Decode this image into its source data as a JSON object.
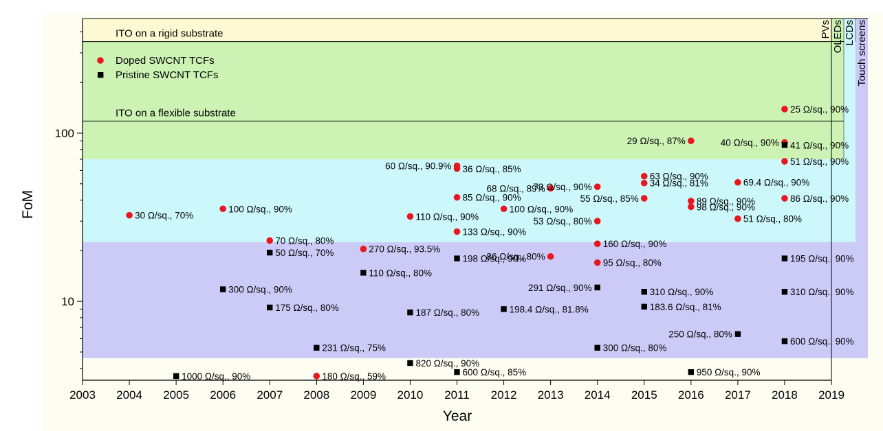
{
  "chart_data": {
    "type": "scatter",
    "title": "",
    "xlabel": "Year",
    "ylabel": "FoM",
    "xlim": [
      2003,
      2019
    ],
    "ylim": [
      3.4,
      480
    ],
    "y_scale": "log",
    "x_ticks": [
      2003,
      2004,
      2005,
      2006,
      2007,
      2008,
      2009,
      2010,
      2011,
      2012,
      2013,
      2014,
      2015,
      2016,
      2017,
      2018,
      2019
    ],
    "y_ticks": [
      10,
      100
    ],
    "y_tick_labels": [
      "10",
      "100"
    ],
    "grid": false,
    "legend_position": "top-left",
    "legend": [
      {
        "label": "Doped SWCNT TCFs",
        "marker": "circle",
        "color": "#e8171f"
      },
      {
        "label": "Pristine  SWCNT TCFs",
        "marker": "square",
        "color": "#000000"
      }
    ],
    "reference_lines": [
      {
        "label": "ITO on a rigid substrate",
        "y": 350
      },
      {
        "label": "ITO on a flexible substrate",
        "y": 118
      }
    ],
    "bands": [
      {
        "label": "Touch screens",
        "y_from": 4.6,
        "y_to": 480,
        "color": "#cccbf8"
      },
      {
        "label": "LCDs",
        "y_from": 22.5,
        "y_to": 480,
        "color": "#cdf8fb"
      },
      {
        "label": "OLEDs",
        "y_from": 70,
        "y_to": 480,
        "color": "#ccf2b4"
      },
      {
        "label": "PVs",
        "y_from": 350,
        "y_to": 480,
        "color": "#fdf9d2"
      }
    ],
    "background_color": "#fdfdf2",
    "series": [
      {
        "name": "Doped SWCNT TCFs",
        "marker": "circle",
        "color": "#e8171f",
        "points": [
          {
            "x": 2004,
            "y": 32.5,
            "label": "30 Ω/sq., 70%"
          },
          {
            "x": 2006,
            "y": 35.5,
            "label": "100 Ω/sq., 90%"
          },
          {
            "x": 2007,
            "y": 23,
            "label": "70 Ω/sq., 80%"
          },
          {
            "x": 2008,
            "y": 3.6,
            "label": "180 Ω/sq., 59%"
          },
          {
            "x": 2009,
            "y": 20.5,
            "label": "270 Ω/sq., 93.5%"
          },
          {
            "x": 2010,
            "y": 32,
            "label": "110 Ω/sq., 90%"
          },
          {
            "x": 2011,
            "y": 64,
            "label": "60 Ω/sq., 90.9%"
          },
          {
            "x": 2011,
            "y": 61.5,
            "label": "36 Ω/sq., 85%"
          },
          {
            "x": 2011,
            "y": 41.5,
            "label": "85 Ω/sq., 90%"
          },
          {
            "x": 2011,
            "y": 26,
            "label": "133 Ω/sq., 90%"
          },
          {
            "x": 2012,
            "y": 35.5,
            "label": "100 Ω/sq., 90%"
          },
          {
            "x": 2013,
            "y": 47,
            "label": "68 Ω/sq., 89%"
          },
          {
            "x": 2013,
            "y": 18.5,
            "label": "86 Ω/sq., 80%"
          },
          {
            "x": 2014,
            "y": 48,
            "label": "73 Ω/sq., 90%"
          },
          {
            "x": 2014,
            "y": 30,
            "label": "53 Ω/sq., 80%"
          },
          {
            "x": 2014,
            "y": 22,
            "label": "160 Ω/sq., 90%"
          },
          {
            "x": 2014,
            "y": 17,
            "label": "95 Ω/sq., 80%"
          },
          {
            "x": 2015,
            "y": 55.5,
            "label": "63 Ω/sq., 90%"
          },
          {
            "x": 2015,
            "y": 50.5,
            "label": "34 Ω/sq., 81%"
          },
          {
            "x": 2015,
            "y": 41,
            "label": "55 Ω/sq., 85%"
          },
          {
            "x": 2016,
            "y": 90,
            "label": "29 Ω/sq., 87%"
          },
          {
            "x": 2016,
            "y": 39.5,
            "label": "89 Ω/sq., 90%"
          },
          {
            "x": 2016,
            "y": 36.5,
            "label": "98 Ω/sq., 90%"
          },
          {
            "x": 2017,
            "y": 51,
            "label": "69.4 Ω/sq., 90%"
          },
          {
            "x": 2017,
            "y": 31,
            "label": "51 Ω/sq., 80%"
          },
          {
            "x": 2018,
            "y": 139,
            "label": "25 Ω/sq., 90%"
          },
          {
            "x": 2018,
            "y": 88,
            "label": "40 Ω/sq., 90%"
          },
          {
            "x": 2018,
            "y": 68,
            "label": "51 Ω/sq., 90%"
          },
          {
            "x": 2018,
            "y": 41,
            "label": "86 Ω/sq., 90%"
          }
        ]
      },
      {
        "name": "Pristine  SWCNT TCFs",
        "marker": "square",
        "color": "#000000",
        "points": [
          {
            "x": 2005,
            "y": 3.6,
            "label": "1000 Ω/sq., 90%"
          },
          {
            "x": 2006,
            "y": 11.8,
            "label": "300 Ω/sq., 90%"
          },
          {
            "x": 2007,
            "y": 19.5,
            "label": "50 Ω/sq., 70%"
          },
          {
            "x": 2007,
            "y": 9.2,
            "label": "175 Ω/sq., 80%"
          },
          {
            "x": 2008,
            "y": 5.3,
            "label": "231 Ω/sq., 75%"
          },
          {
            "x": 2009,
            "y": 14.8,
            "label": "110 Ω/sq., 80%"
          },
          {
            "x": 2010,
            "y": 8.6,
            "label": "187 Ω/sq., 80%"
          },
          {
            "x": 2010,
            "y": 4.3,
            "label": "820 Ω/sq., 90%"
          },
          {
            "x": 2011,
            "y": 18,
            "label": "198 Ω/sq., 90%"
          },
          {
            "x": 2011,
            "y": 3.8,
            "label": "600 Ω/sq., 85%"
          },
          {
            "x": 2012,
            "y": 9.0,
            "label": "198.4 Ω/sq., 81.8%"
          },
          {
            "x": 2014,
            "y": 12.1,
            "label": "291 Ω/sq., 90%"
          },
          {
            "x": 2014,
            "y": 5.3,
            "label": "300 Ω/sq., 80%"
          },
          {
            "x": 2015,
            "y": 11.4,
            "label": "310 Ω/sq., 90%"
          },
          {
            "x": 2015,
            "y": 9.3,
            "label": "183.6 Ω/sq., 81%"
          },
          {
            "x": 2016,
            "y": 3.8,
            "label": "950 Ω/sq., 90%"
          },
          {
            "x": 2017,
            "y": 6.4,
            "label": "250 Ω/sq., 80%"
          },
          {
            "x": 2018,
            "y": 85,
            "label": "41 Ω/sq., 90%"
          },
          {
            "x": 2018,
            "y": 18,
            "label": "195 Ω/sq., 90%"
          },
          {
            "x": 2018,
            "y": 11.4,
            "label": "310 Ω/sq., 90%"
          },
          {
            "x": 2018,
            "y": 5.8,
            "label": "600 Ω/sq., 90%"
          }
        ]
      }
    ]
  }
}
